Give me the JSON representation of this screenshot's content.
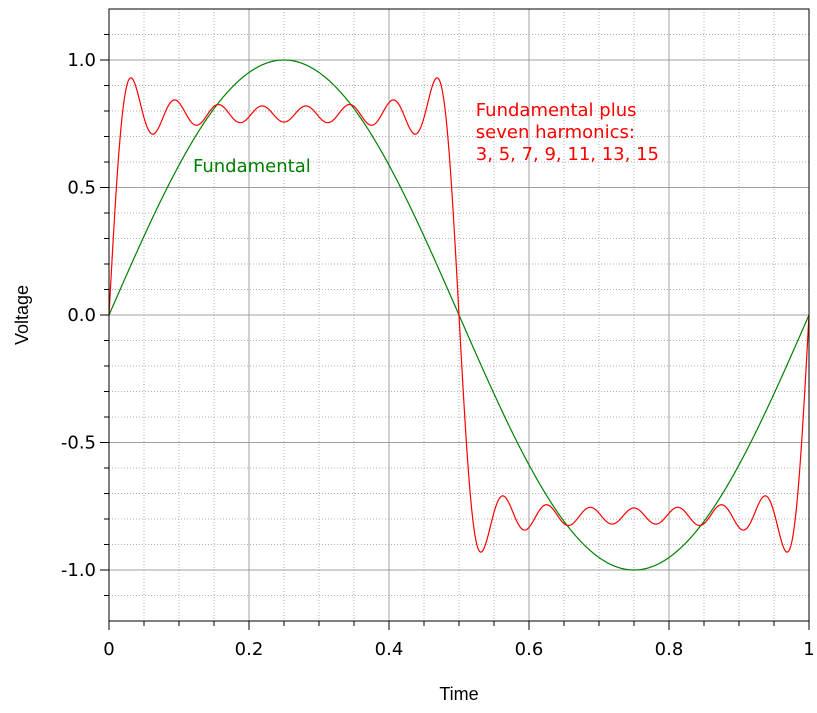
{
  "chart_data": {
    "type": "line",
    "title": "",
    "xlabel": "Time",
    "ylabel": "Voltage",
    "xlim": [
      0,
      1
    ],
    "ylim": [
      -1.2,
      1.2
    ],
    "x_ticks": [
      "0",
      "0.2",
      "0.4",
      "0.6",
      "0.8",
      "1"
    ],
    "y_ticks": [
      "1.0",
      "0.5",
      "0.0",
      "-0.5",
      "-1.0"
    ],
    "grid": true,
    "series": [
      {
        "key": "fundamental",
        "color": "#008000",
        "function": "sin(2*pi*t)",
        "harmonics": [
          1
        ]
      },
      {
        "key": "harmonics_sum",
        "color": "#ff0000",
        "function": "sum over n of sin(2*pi*n*t)/n",
        "harmonics": [
          1,
          3,
          5,
          7,
          9,
          11,
          13,
          15
        ]
      }
    ],
    "annotations": [
      {
        "key": "fundamental_label",
        "lines": [
          "Fundamental"
        ],
        "color": "#008000",
        "x": 0.12,
        "y": 0.56
      },
      {
        "key": "harmonics_label",
        "lines": [
          "Fundamental plus",
          "seven harmonics:",
          "3, 5, 7, 9, 11, 13, 15"
        ],
        "color": "#ff0000",
        "x": 0.524,
        "y": 0.78
      }
    ]
  }
}
